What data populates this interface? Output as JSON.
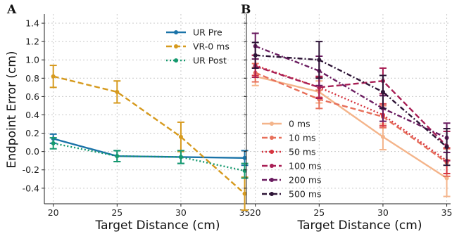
{
  "figure": {
    "panel_labels": [
      "A",
      "B"
    ],
    "ylabel": "Endpoint Error (cm)",
    "xlabel": "Target Distance (cm)"
  },
  "chart_data": [
    {
      "type": "line",
      "panel": "A",
      "title": "",
      "xlabel": "Target Distance (cm)",
      "ylabel": "Endpoint Error (cm)",
      "x": [
        20,
        25,
        30,
        35
      ],
      "xlim": [
        19.3,
        35.3
      ],
      "ylim": [
        -0.57,
        1.5
      ],
      "xticks": [
        "20",
        "25",
        "30",
        "35"
      ],
      "yticks": [
        "-0.4",
        "-0.2",
        "0.0",
        "0.2",
        "0.4",
        "0.6",
        "0.8",
        "1.0",
        "1.2",
        "1.4"
      ],
      "grid": true,
      "legend": "top-right",
      "series": [
        {
          "name": "UR Pre",
          "color": "#1a73a8",
          "style": "solid",
          "values": [
            0.14,
            -0.05,
            -0.06,
            -0.07
          ],
          "errors": [
            0.05,
            0.06,
            0.07,
            0.08
          ]
        },
        {
          "name": "VR-0 ms",
          "color": "#d69a1e",
          "style": "dashed",
          "values": [
            0.82,
            0.65,
            0.16,
            -0.46
          ],
          "errors": [
            0.12,
            0.12,
            0.16,
            0.18
          ]
        },
        {
          "name": "UR Post",
          "color": "#15996e",
          "style": "dotted",
          "values": [
            0.09,
            -0.05,
            -0.06,
            -0.21
          ],
          "errors": [
            0.06,
            0.06,
            0.07,
            0.08
          ]
        }
      ]
    },
    {
      "type": "line",
      "panel": "B",
      "title": "",
      "xlabel": "Target Distance (cm)",
      "ylabel": "",
      "x": [
        20,
        25,
        30,
        35
      ],
      "xlim": [
        19.3,
        35.3
      ],
      "ylim": [
        -0.57,
        1.5
      ],
      "xticks": [
        "20",
        "25",
        "30",
        "35"
      ],
      "grid": true,
      "legend": "bottom-left",
      "series": [
        {
          "name": "0 ms",
          "color": "#f4b48a",
          "style": "solid",
          "values": [
            0.82,
            0.65,
            0.16,
            -0.29
          ],
          "errors": [
            0.1,
            0.12,
            0.14,
            0.2
          ]
        },
        {
          "name": "10 ms",
          "color": "#e7705b",
          "style": "dashed",
          "values": [
            0.86,
            0.57,
            0.38,
            -0.12
          ],
          "errors": [
            0.1,
            0.1,
            0.12,
            0.15
          ]
        },
        {
          "name": "50 ms",
          "color": "#d6343f",
          "style": "dotted",
          "values": [
            0.94,
            0.7,
            0.4,
            -0.1
          ],
          "errors": [
            0.11,
            0.11,
            0.12,
            0.14
          ]
        },
        {
          "name": "100 ms",
          "color": "#a81f55",
          "style": "dashed",
          "values": [
            0.93,
            0.7,
            0.77,
            0.06
          ],
          "errors": [
            0.12,
            0.12,
            0.14,
            0.16
          ]
        },
        {
          "name": "200 ms",
          "color": "#6a1c60",
          "style": "dashdot",
          "values": [
            1.15,
            0.88,
            0.47,
            0.15
          ],
          "errors": [
            0.14,
            0.16,
            0.14,
            0.16
          ]
        },
        {
          "name": "500 ms",
          "color": "#2d1436",
          "style": "dashdot",
          "values": [
            1.05,
            1.0,
            0.65,
            0.05
          ],
          "errors": [
            0.14,
            0.2,
            0.18,
            0.2
          ]
        }
      ]
    }
  ]
}
